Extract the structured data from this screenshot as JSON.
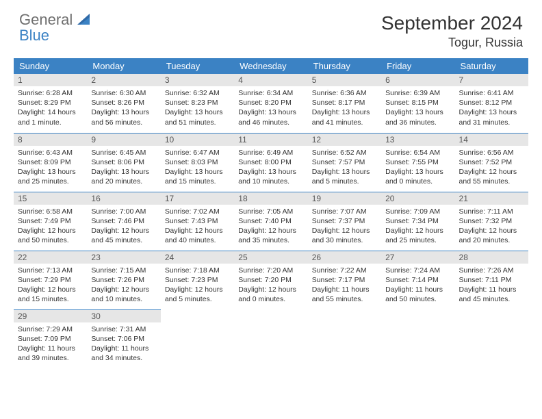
{
  "brand": {
    "word1": "General",
    "word2": "Blue",
    "color_general": "#6f6f6f",
    "color_blue": "#3b82c4",
    "icon_fill": "#2f6aa8"
  },
  "header": {
    "month_title": "September 2024",
    "location": "Togur, Russia"
  },
  "styling": {
    "header_bg": "#3b82c4",
    "header_text": "#ffffff",
    "daynum_bg": "#e6e6e6",
    "row_border": "#3b82c4",
    "body_font_size_pt": 10.5,
    "th_font_size_pt": 13
  },
  "columns": [
    "Sunday",
    "Monday",
    "Tuesday",
    "Wednesday",
    "Thursday",
    "Friday",
    "Saturday"
  ],
  "weeks": [
    [
      {
        "n": "1",
        "sr": "Sunrise: 6:28 AM",
        "ss": "Sunset: 8:29 PM",
        "dl": "Daylight: 14 hours and 1 minute."
      },
      {
        "n": "2",
        "sr": "Sunrise: 6:30 AM",
        "ss": "Sunset: 8:26 PM",
        "dl": "Daylight: 13 hours and 56 minutes."
      },
      {
        "n": "3",
        "sr": "Sunrise: 6:32 AM",
        "ss": "Sunset: 8:23 PM",
        "dl": "Daylight: 13 hours and 51 minutes."
      },
      {
        "n": "4",
        "sr": "Sunrise: 6:34 AM",
        "ss": "Sunset: 8:20 PM",
        "dl": "Daylight: 13 hours and 46 minutes."
      },
      {
        "n": "5",
        "sr": "Sunrise: 6:36 AM",
        "ss": "Sunset: 8:17 PM",
        "dl": "Daylight: 13 hours and 41 minutes."
      },
      {
        "n": "6",
        "sr": "Sunrise: 6:39 AM",
        "ss": "Sunset: 8:15 PM",
        "dl": "Daylight: 13 hours and 36 minutes."
      },
      {
        "n": "7",
        "sr": "Sunrise: 6:41 AM",
        "ss": "Sunset: 8:12 PM",
        "dl": "Daylight: 13 hours and 31 minutes."
      }
    ],
    [
      {
        "n": "8",
        "sr": "Sunrise: 6:43 AM",
        "ss": "Sunset: 8:09 PM",
        "dl": "Daylight: 13 hours and 25 minutes."
      },
      {
        "n": "9",
        "sr": "Sunrise: 6:45 AM",
        "ss": "Sunset: 8:06 PM",
        "dl": "Daylight: 13 hours and 20 minutes."
      },
      {
        "n": "10",
        "sr": "Sunrise: 6:47 AM",
        "ss": "Sunset: 8:03 PM",
        "dl": "Daylight: 13 hours and 15 minutes."
      },
      {
        "n": "11",
        "sr": "Sunrise: 6:49 AM",
        "ss": "Sunset: 8:00 PM",
        "dl": "Daylight: 13 hours and 10 minutes."
      },
      {
        "n": "12",
        "sr": "Sunrise: 6:52 AM",
        "ss": "Sunset: 7:57 PM",
        "dl": "Daylight: 13 hours and 5 minutes."
      },
      {
        "n": "13",
        "sr": "Sunrise: 6:54 AM",
        "ss": "Sunset: 7:55 PM",
        "dl": "Daylight: 13 hours and 0 minutes."
      },
      {
        "n": "14",
        "sr": "Sunrise: 6:56 AM",
        "ss": "Sunset: 7:52 PM",
        "dl": "Daylight: 12 hours and 55 minutes."
      }
    ],
    [
      {
        "n": "15",
        "sr": "Sunrise: 6:58 AM",
        "ss": "Sunset: 7:49 PM",
        "dl": "Daylight: 12 hours and 50 minutes."
      },
      {
        "n": "16",
        "sr": "Sunrise: 7:00 AM",
        "ss": "Sunset: 7:46 PM",
        "dl": "Daylight: 12 hours and 45 minutes."
      },
      {
        "n": "17",
        "sr": "Sunrise: 7:02 AM",
        "ss": "Sunset: 7:43 PM",
        "dl": "Daylight: 12 hours and 40 minutes."
      },
      {
        "n": "18",
        "sr": "Sunrise: 7:05 AM",
        "ss": "Sunset: 7:40 PM",
        "dl": "Daylight: 12 hours and 35 minutes."
      },
      {
        "n": "19",
        "sr": "Sunrise: 7:07 AM",
        "ss": "Sunset: 7:37 PM",
        "dl": "Daylight: 12 hours and 30 minutes."
      },
      {
        "n": "20",
        "sr": "Sunrise: 7:09 AM",
        "ss": "Sunset: 7:34 PM",
        "dl": "Daylight: 12 hours and 25 minutes."
      },
      {
        "n": "21",
        "sr": "Sunrise: 7:11 AM",
        "ss": "Sunset: 7:32 PM",
        "dl": "Daylight: 12 hours and 20 minutes."
      }
    ],
    [
      {
        "n": "22",
        "sr": "Sunrise: 7:13 AM",
        "ss": "Sunset: 7:29 PM",
        "dl": "Daylight: 12 hours and 15 minutes."
      },
      {
        "n": "23",
        "sr": "Sunrise: 7:15 AM",
        "ss": "Sunset: 7:26 PM",
        "dl": "Daylight: 12 hours and 10 minutes."
      },
      {
        "n": "24",
        "sr": "Sunrise: 7:18 AM",
        "ss": "Sunset: 7:23 PM",
        "dl": "Daylight: 12 hours and 5 minutes."
      },
      {
        "n": "25",
        "sr": "Sunrise: 7:20 AM",
        "ss": "Sunset: 7:20 PM",
        "dl": "Daylight: 12 hours and 0 minutes."
      },
      {
        "n": "26",
        "sr": "Sunrise: 7:22 AM",
        "ss": "Sunset: 7:17 PM",
        "dl": "Daylight: 11 hours and 55 minutes."
      },
      {
        "n": "27",
        "sr": "Sunrise: 7:24 AM",
        "ss": "Sunset: 7:14 PM",
        "dl": "Daylight: 11 hours and 50 minutes."
      },
      {
        "n": "28",
        "sr": "Sunrise: 7:26 AM",
        "ss": "Sunset: 7:11 PM",
        "dl": "Daylight: 11 hours and 45 minutes."
      }
    ],
    [
      {
        "n": "29",
        "sr": "Sunrise: 7:29 AM",
        "ss": "Sunset: 7:09 PM",
        "dl": "Daylight: 11 hours and 39 minutes."
      },
      {
        "n": "30",
        "sr": "Sunrise: 7:31 AM",
        "ss": "Sunset: 7:06 PM",
        "dl": "Daylight: 11 hours and 34 minutes."
      },
      null,
      null,
      null,
      null,
      null
    ]
  ]
}
